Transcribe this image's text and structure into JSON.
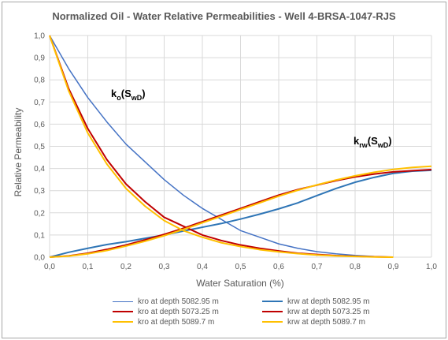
{
  "chart_data": {
    "type": "line",
    "title": "Normalized Oil - Water Relative Permeabilities - Well 4-BRSA-1047-RJS",
    "xlabel": "Water Saturation (%)",
    "ylabel": "Relative Permeability",
    "xlim": [
      0,
      1
    ],
    "ylim": [
      0,
      1
    ],
    "xticks": [
      "0,0",
      "0,1",
      "0,2",
      "0,3",
      "0,4",
      "0,5",
      "0,6",
      "0,7",
      "0,8",
      "0,9",
      "1,0"
    ],
    "yticks": [
      "0,0",
      "0,1",
      "0,2",
      "0,3",
      "0,4",
      "0,5",
      "0,6",
      "0,7",
      "0,8",
      "0,9",
      "1,0"
    ],
    "grid": true,
    "legend_position": "bottom",
    "annotations": {
      "kro_main": "k",
      "kro_sub": "o",
      "kro_rest": "(S",
      "kro_sub2": "wD",
      "kro_end": ")",
      "krw_main": "k",
      "krw_sub": "rw",
      "krw_rest": "(S",
      "krw_sub2": "wD",
      "krw_end": ")"
    },
    "series": [
      {
        "name": "kro at depth 5082.95 m",
        "color": "#4472c4",
        "width": 1.5,
        "x": [
          0,
          0.05,
          0.1,
          0.15,
          0.2,
          0.25,
          0.3,
          0.35,
          0.4,
          0.45,
          0.5,
          0.55,
          0.6,
          0.65,
          0.7,
          0.75,
          0.8,
          0.85,
          0.9
        ],
        "y": [
          1.0,
          0.85,
          0.72,
          0.61,
          0.51,
          0.43,
          0.35,
          0.28,
          0.22,
          0.17,
          0.12,
          0.09,
          0.06,
          0.04,
          0.025,
          0.015,
          0.008,
          0.003,
          0
        ]
      },
      {
        "name": "krw at depth 5082.95 m",
        "color": "#2e75b6",
        "width": 2,
        "x": [
          0,
          0.05,
          0.1,
          0.15,
          0.2,
          0.25,
          0.3,
          0.35,
          0.4,
          0.45,
          0.5,
          0.55,
          0.6,
          0.65,
          0.7,
          0.75,
          0.8,
          0.85,
          0.9,
          0.95,
          1.0
        ],
        "y": [
          0,
          0.022,
          0.04,
          0.057,
          0.07,
          0.085,
          0.1,
          0.118,
          0.135,
          0.152,
          0.172,
          0.194,
          0.218,
          0.245,
          0.278,
          0.31,
          0.338,
          0.36,
          0.378,
          0.388,
          0.392
        ]
      },
      {
        "name": "kro at depth 5073.25 m",
        "color": "#c00000",
        "width": 2,
        "x": [
          0,
          0.05,
          0.1,
          0.15,
          0.2,
          0.25,
          0.3,
          0.35,
          0.4,
          0.45,
          0.5,
          0.55,
          0.6,
          0.65,
          0.7,
          0.75,
          0.8,
          0.85,
          0.9
        ],
        "y": [
          1.0,
          0.76,
          0.58,
          0.44,
          0.33,
          0.25,
          0.18,
          0.14,
          0.1,
          0.075,
          0.055,
          0.04,
          0.028,
          0.018,
          0.012,
          0.007,
          0.004,
          0.002,
          0
        ]
      },
      {
        "name": "krw at depth 5073.25 m",
        "color": "#c00000",
        "width": 2,
        "x": [
          0,
          0.05,
          0.1,
          0.15,
          0.2,
          0.25,
          0.3,
          0.35,
          0.4,
          0.45,
          0.5,
          0.55,
          0.6,
          0.65,
          0.7,
          0.75,
          0.8,
          0.85,
          0.9,
          0.95,
          1.0
        ],
        "y": [
          0,
          0.006,
          0.018,
          0.035,
          0.055,
          0.078,
          0.103,
          0.13,
          0.16,
          0.19,
          0.22,
          0.25,
          0.28,
          0.305,
          0.325,
          0.345,
          0.362,
          0.375,
          0.385,
          0.39,
          0.395
        ]
      },
      {
        "name": "kro at depth 5089.7 m",
        "color": "#ffc000",
        "width": 2,
        "x": [
          0,
          0.05,
          0.1,
          0.15,
          0.2,
          0.25,
          0.3,
          0.35,
          0.4,
          0.45,
          0.5,
          0.55,
          0.6,
          0.65,
          0.7,
          0.75,
          0.8,
          0.85,
          0.9
        ],
        "y": [
          1.0,
          0.75,
          0.56,
          0.42,
          0.31,
          0.23,
          0.165,
          0.12,
          0.09,
          0.065,
          0.048,
          0.034,
          0.024,
          0.016,
          0.01,
          0.006,
          0.003,
          0.001,
          0
        ]
      },
      {
        "name": "krw at depth 5089.7 m",
        "color": "#ffc000",
        "width": 2,
        "x": [
          0,
          0.05,
          0.1,
          0.15,
          0.2,
          0.25,
          0.3,
          0.35,
          0.4,
          0.45,
          0.5,
          0.55,
          0.6,
          0.65,
          0.7,
          0.75,
          0.8,
          0.85,
          0.9,
          0.95,
          1.0
        ],
        "y": [
          0,
          0.005,
          0.015,
          0.03,
          0.05,
          0.072,
          0.097,
          0.125,
          0.155,
          0.185,
          0.215,
          0.245,
          0.275,
          0.302,
          0.326,
          0.348,
          0.367,
          0.383,
          0.396,
          0.405,
          0.41
        ]
      }
    ]
  }
}
